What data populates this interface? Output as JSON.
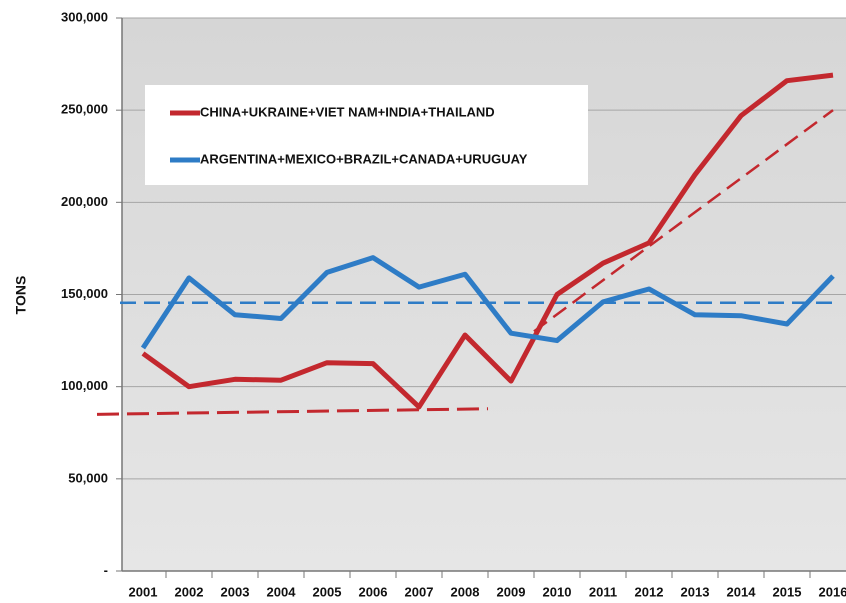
{
  "chart_data": {
    "type": "line",
    "y_label": "TONS",
    "categories": [
      "2001",
      "2002",
      "2003",
      "2004",
      "2005",
      "2006",
      "2007",
      "2008",
      "2009",
      "2010",
      "2011",
      "2012",
      "2013",
      "2014",
      "2015",
      "2016"
    ],
    "series": [
      {
        "name": "CHINA+UKRAINE+VIET NAM+INDIA+THAILAND",
        "color": "#c3282e",
        "values": [
          118000,
          100000,
          104000,
          103500,
          113000,
          112500,
          89000,
          128000,
          103000,
          150000,
          167000,
          178000,
          215000,
          247000,
          266000,
          269000
        ]
      },
      {
        "name": "ARGENTINA+MEXICO+BRAZIL+CANADA+URUGUAY",
        "color": "#2e7cc6",
        "values": [
          121000,
          159000,
          139000,
          137000,
          162000,
          170000,
          154000,
          161000,
          129000,
          125000,
          146000,
          153000,
          139000,
          138500,
          134000,
          160000
        ]
      }
    ],
    "trend_lines": [
      {
        "color": "#c3282e",
        "x": [
          2000,
          2008.5
        ],
        "values": [
          85000,
          88000
        ]
      },
      {
        "color": "#c3282e",
        "x": [
          2009.5,
          2016
        ],
        "values": [
          130000,
          250000
        ]
      },
      {
        "color": "#2e7cc6",
        "x": [
          2000.5,
          2016
        ],
        "values": [
          145500,
          145500
        ]
      }
    ],
    "ylim": [
      0,
      300000
    ],
    "yticks": [
      {
        "value": 0,
        "label": "-"
      },
      {
        "value": 50000,
        "label": "50,000"
      },
      {
        "value": 100000,
        "label": "100,000"
      },
      {
        "value": 150000,
        "label": "150,000"
      },
      {
        "value": 200000,
        "label": "200,000"
      },
      {
        "value": 250000,
        "label": "250,000"
      },
      {
        "value": 300000,
        "label": "300,000"
      }
    ],
    "grid": true,
    "legend": "upper left"
  }
}
